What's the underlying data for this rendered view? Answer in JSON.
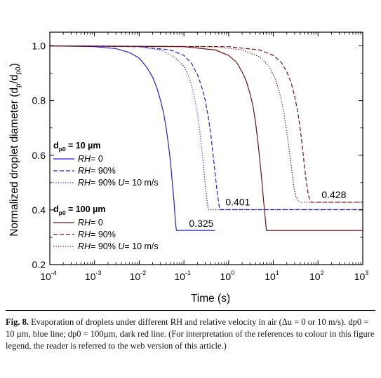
{
  "chart_data": {
    "type": "line",
    "xlabel": "Time (s)",
    "ylabel_parts": {
      "main": "Normalized droplet diameter (d",
      "sub1": "p",
      "mid": "/d",
      "sub2": "p0",
      "end": ")"
    },
    "x_scale": "log",
    "xlim": [
      0.0001,
      1000
    ],
    "ylim": [
      0.2,
      1.05
    ],
    "x_ticks": [
      {
        "value": 0.0001,
        "base": "10",
        "exp": "-4"
      },
      {
        "value": 0.001,
        "base": "10",
        "exp": "-3"
      },
      {
        "value": 0.01,
        "base": "10",
        "exp": "-2"
      },
      {
        "value": 0.1,
        "base": "10",
        "exp": "-1"
      },
      {
        "value": 1,
        "base": "10",
        "exp": "0"
      },
      {
        "value": 10,
        "base": "10",
        "exp": "1"
      },
      {
        "value": 100,
        "base": "10",
        "exp": "2"
      },
      {
        "value": 1000,
        "base": "10",
        "exp": "3"
      }
    ],
    "y_ticks": [
      {
        "value": 0.2,
        "label": "0.2"
      },
      {
        "value": 0.4,
        "label": "0.4"
      },
      {
        "value": 0.6,
        "label": "0.6"
      },
      {
        "value": 0.8,
        "label": "0.8"
      },
      {
        "value": 1.0,
        "label": "1.0"
      }
    ],
    "series": [
      {
        "group": "10",
        "condition": "RH = 0",
        "color": "#1f1fd6",
        "dash": "solid",
        "x": [
          0.0001,
          0.001,
          0.003,
          0.006,
          0.01,
          0.015,
          0.02,
          0.025,
          0.03,
          0.035,
          0.04,
          0.045,
          0.05,
          0.055,
          0.06,
          0.063,
          0.066,
          0.068,
          0.5
        ],
        "y": [
          1.0,
          0.997,
          0.99,
          0.976,
          0.955,
          0.92,
          0.885,
          0.845,
          0.8,
          0.755,
          0.7,
          0.64,
          0.575,
          0.5,
          0.43,
          0.38,
          0.34,
          0.325,
          0.325
        ]
      },
      {
        "group": "10",
        "condition": "RH = 90%",
        "color": "#1f1fd6",
        "dash": "dashed",
        "x": [
          0.0001,
          0.01,
          0.05,
          0.1,
          0.15,
          0.2,
          0.25,
          0.3,
          0.35,
          0.4,
          0.45,
          0.5,
          0.55,
          0.6,
          0.63,
          1000
        ],
        "y": [
          1.0,
          0.997,
          0.985,
          0.965,
          0.935,
          0.895,
          0.85,
          0.8,
          0.74,
          0.675,
          0.6,
          0.53,
          0.47,
          0.425,
          0.401,
          0.401
        ]
      },
      {
        "group": "10",
        "condition": "RH = 90% U = 10 m/s",
        "color": "#1f1fd6",
        "dash": "dotted",
        "x": [
          0.0001,
          0.01,
          0.03,
          0.06,
          0.1,
          0.13,
          0.16,
          0.19,
          0.22,
          0.25,
          0.28,
          0.3,
          0.33,
          0.35,
          1000
        ],
        "y": [
          1.0,
          0.997,
          0.985,
          0.96,
          0.925,
          0.885,
          0.835,
          0.775,
          0.705,
          0.625,
          0.545,
          0.49,
          0.43,
          0.401,
          0.401
        ]
      },
      {
        "group": "100",
        "condition": "RH = 0",
        "color": "#6b1010",
        "dash": "solid",
        "x": [
          0.0001,
          0.1,
          0.5,
          1,
          1.5,
          2,
          2.5,
          3,
          3.5,
          4,
          4.5,
          5,
          5.5,
          6,
          6.5,
          7,
          1000
        ],
        "y": [
          1.0,
          0.997,
          0.985,
          0.965,
          0.94,
          0.905,
          0.87,
          0.825,
          0.78,
          0.72,
          0.65,
          0.58,
          0.51,
          0.44,
          0.38,
          0.325,
          0.325
        ]
      },
      {
        "group": "100",
        "condition": "RH = 90%",
        "color": "#6b1010",
        "dash": "dashed",
        "x": [
          0.0001,
          1,
          5,
          10,
          15,
          20,
          25,
          30,
          35,
          40,
          45,
          50,
          55,
          60,
          65,
          70,
          1000
        ],
        "y": [
          1.0,
          0.997,
          0.985,
          0.965,
          0.94,
          0.905,
          0.865,
          0.815,
          0.76,
          0.695,
          0.625,
          0.555,
          0.5,
          0.46,
          0.437,
          0.428,
          0.428
        ]
      },
      {
        "group": "100",
        "condition": "RH = 90% U = 10 m/s",
        "color": "#6b1010",
        "dash": "dotted",
        "x": [
          0.0001,
          0.5,
          2,
          5,
          8,
          11,
          14,
          17,
          20,
          23,
          26,
          29,
          32,
          36,
          40,
          1000
        ],
        "y": [
          1.0,
          0.997,
          0.985,
          0.96,
          0.925,
          0.88,
          0.825,
          0.76,
          0.685,
          0.61,
          0.54,
          0.48,
          0.45,
          0.434,
          0.428,
          0.428
        ]
      }
    ],
    "annotations": [
      {
        "text": "0.325",
        "x": 0.13,
        "y": 0.338
      },
      {
        "text": "0.401",
        "x": 0.85,
        "y": 0.416
      },
      {
        "text": "0.428",
        "x": 120,
        "y": 0.443
      }
    ],
    "legend_groups": [
      {
        "prefix": "d",
        "sub": "p0",
        "value": "= 10 µm",
        "entries": [
          {
            "rh": "RH",
            "rest": "= 0",
            "dash": "solid",
            "color": "#1f1fd6"
          },
          {
            "rh": "RH",
            "rest": "= 90%",
            "dash": "dashed",
            "color": "#1f1fd6"
          },
          {
            "rh": "RH",
            "rest": "= 90% ",
            "u": "U",
            "urest": "= 10 m/s",
            "dash": "dotted",
            "color": "#1f1fd6"
          }
        ]
      },
      {
        "prefix": "d",
        "sub": "p0",
        "value": "= 100 µm",
        "entries": [
          {
            "rh": "RH",
            "rest": "= 0",
            "dash": "solid",
            "color": "#6b1010"
          },
          {
            "rh": "RH",
            "rest": "= 90%",
            "dash": "dashed",
            "color": "#6b1010"
          },
          {
            "rh": "RH",
            "rest": "= 90% ",
            "u": "U",
            "urest": "= 10 m/s",
            "dash": "dotted",
            "color": "#6b1010"
          }
        ]
      }
    ],
    "legend_placement": "left-middle"
  },
  "caption": {
    "label": "Fig. 8.",
    "text": "Evaporation of droplets under different RH and relative velocity in air (Δu = 0 or 10 m/s). dp0 = 10 µm, blue line; dp0 = 100µm, dark red line. (For interpretation of the references to colour in this figure legend, the reader is referred to the web version of this article.)"
  }
}
